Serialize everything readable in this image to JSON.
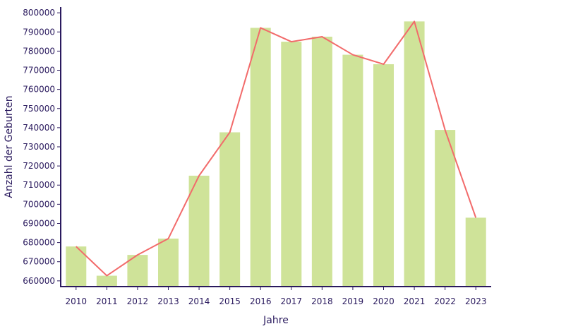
{
  "chart_data": {
    "type": "bar",
    "categories": [
      "2010",
      "2011",
      "2012",
      "2013",
      "2014",
      "2015",
      "2016",
      "2017",
      "2018",
      "2019",
      "2020",
      "2021",
      "2022",
      "2023"
    ],
    "values": [
      677947,
      662685,
      673544,
      682069,
      714927,
      737575,
      792141,
      784901,
      787523,
      778090,
      773144,
      795492,
      738819,
      692989
    ],
    "overlay_line": true,
    "xlabel": "Jahre",
    "ylabel": "Anzahl der Geburten",
    "ylim": [
      657000,
      803000
    ],
    "yticks": [
      660000,
      670000,
      680000,
      690000,
      700000,
      710000,
      720000,
      730000,
      740000,
      750000,
      760000,
      770000,
      780000,
      790000,
      800000
    ],
    "grid": false,
    "colors": {
      "bar": "#cfe399",
      "line": "#f26b6b",
      "axis": "#2a1a5e"
    }
  }
}
